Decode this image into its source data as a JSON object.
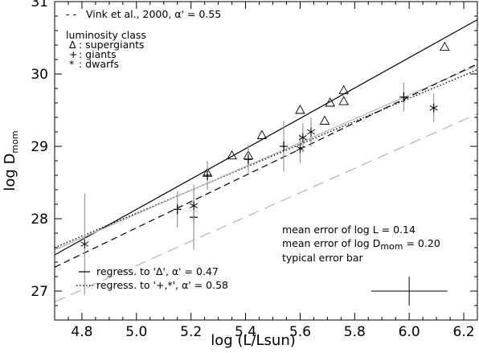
{
  "chart_data": {
    "type": "scatter",
    "xlabel": "log (L/Lsun)",
    "ylabel_main": "log D",
    "ylabel_sub": "mom",
    "xlim": [
      4.7,
      6.25
    ],
    "ylim": [
      26.6,
      31.0
    ],
    "xticks": [
      "4.8",
      "5.0",
      "5.2",
      "5.4",
      "5.6",
      "5.8",
      "6.0",
      "6.2"
    ],
    "xtick_values": [
      4.8,
      5.0,
      5.2,
      5.4,
      5.6,
      5.8,
      6.0,
      6.2
    ],
    "yticks": [
      "27",
      "28",
      "29",
      "30",
      "31"
    ],
    "ytick_values": [
      27,
      28,
      29,
      30,
      31
    ],
    "legend_top": {
      "vink": "Vink et al., 2000, α' = 0.55",
      "vink_dash": "- -",
      "class_title": "luminosity class",
      "supergiants_sym": "Δ",
      "supergiants": ": supergiants",
      "giants_sym": "+",
      "giants": ": giants",
      "dwarfs_sym": "*",
      "dwarfs": ": dwarfs"
    },
    "legend_bottom": {
      "reg_sg": "regress. to 'Δ',   α' = 0.47",
      "reg_gd": "regress. to '+,*',  α' = 0.58"
    },
    "error_text": {
      "l1": "mean error of log L      = 0.14",
      "l2_a": "mean error of log D",
      "l2_sub": "mom",
      "l2_b": " = 0.20",
      "l3": "typical error bar"
    },
    "typical_error_bar": {
      "x": 6.0,
      "y": 27.0,
      "dx": 0.14,
      "dy": 0.2
    },
    "series": [
      {
        "name": "supergiants",
        "marker": "triangle",
        "points": [
          {
            "x": 5.26,
            "y": 28.63
          },
          {
            "x": 5.35,
            "y": 28.87
          },
          {
            "x": 5.41,
            "y": 28.87
          },
          {
            "x": 5.46,
            "y": 29.15
          },
          {
            "x": 5.6,
            "y": 29.5
          },
          {
            "x": 5.69,
            "y": 29.35
          },
          {
            "x": 5.71,
            "y": 29.6
          },
          {
            "x": 5.76,
            "y": 29.77
          },
          {
            "x": 5.76,
            "y": 29.62
          },
          {
            "x": 6.13,
            "y": 30.37
          }
        ]
      },
      {
        "name": "giants",
        "marker": "plus",
        "points": [
          {
            "x": 5.15,
            "y": 28.13,
            "yerr": 0.25
          },
          {
            "x": 5.21,
            "y": 28.02,
            "yerr": 0.45
          },
          {
            "x": 5.26,
            "y": 28.6,
            "yerr": 0.2
          },
          {
            "x": 5.41,
            "y": 28.82,
            "yerr": 0.2
          },
          {
            "x": 5.54,
            "y": 29.0,
            "yerr": 0.35
          },
          {
            "x": 5.98,
            "y": 29.68,
            "yerr": 0.2
          }
        ]
      },
      {
        "name": "dwarfs",
        "marker": "star",
        "points": [
          {
            "x": 4.81,
            "y": 27.65,
            "yerr": 0.7
          },
          {
            "x": 5.21,
            "y": 28.18,
            "yerr": 0.25
          },
          {
            "x": 5.6,
            "y": 28.97,
            "yerr": 0.2
          },
          {
            "x": 5.61,
            "y": 29.12,
            "yerr": 0.2
          },
          {
            "x": 5.64,
            "y": 29.2,
            "yerr": 0.2
          },
          {
            "x": 6.09,
            "y": 29.53,
            "yerr": 0.2
          }
        ]
      }
    ],
    "lines": [
      {
        "label": "regression supergiants",
        "style": "solid",
        "color": "#000000",
        "x": [
          4.7,
          6.25
        ],
        "y": [
          27.5,
          30.75
        ]
      },
      {
        "label": "regression giants+dwarfs",
        "style": "dotted",
        "color": "#000000",
        "x": [
          4.7,
          6.25
        ],
        "y": [
          27.6,
          30.06
        ]
      },
      {
        "label": "grey solid",
        "style": "solid",
        "color": "#b4b4b4",
        "x": [
          4.7,
          6.25
        ],
        "y": [
          27.57,
          30.12
        ]
      },
      {
        "label": "black dashed",
        "style": "dashed",
        "color": "#000000",
        "x": [
          4.7,
          6.25
        ],
        "y": [
          27.33,
          30.14
        ]
      },
      {
        "label": "Vink et al., 2000",
        "style": "dashed",
        "color": "#b4b4b4",
        "x": [
          4.7,
          6.25
        ],
        "y": [
          26.85,
          29.45
        ]
      }
    ]
  }
}
